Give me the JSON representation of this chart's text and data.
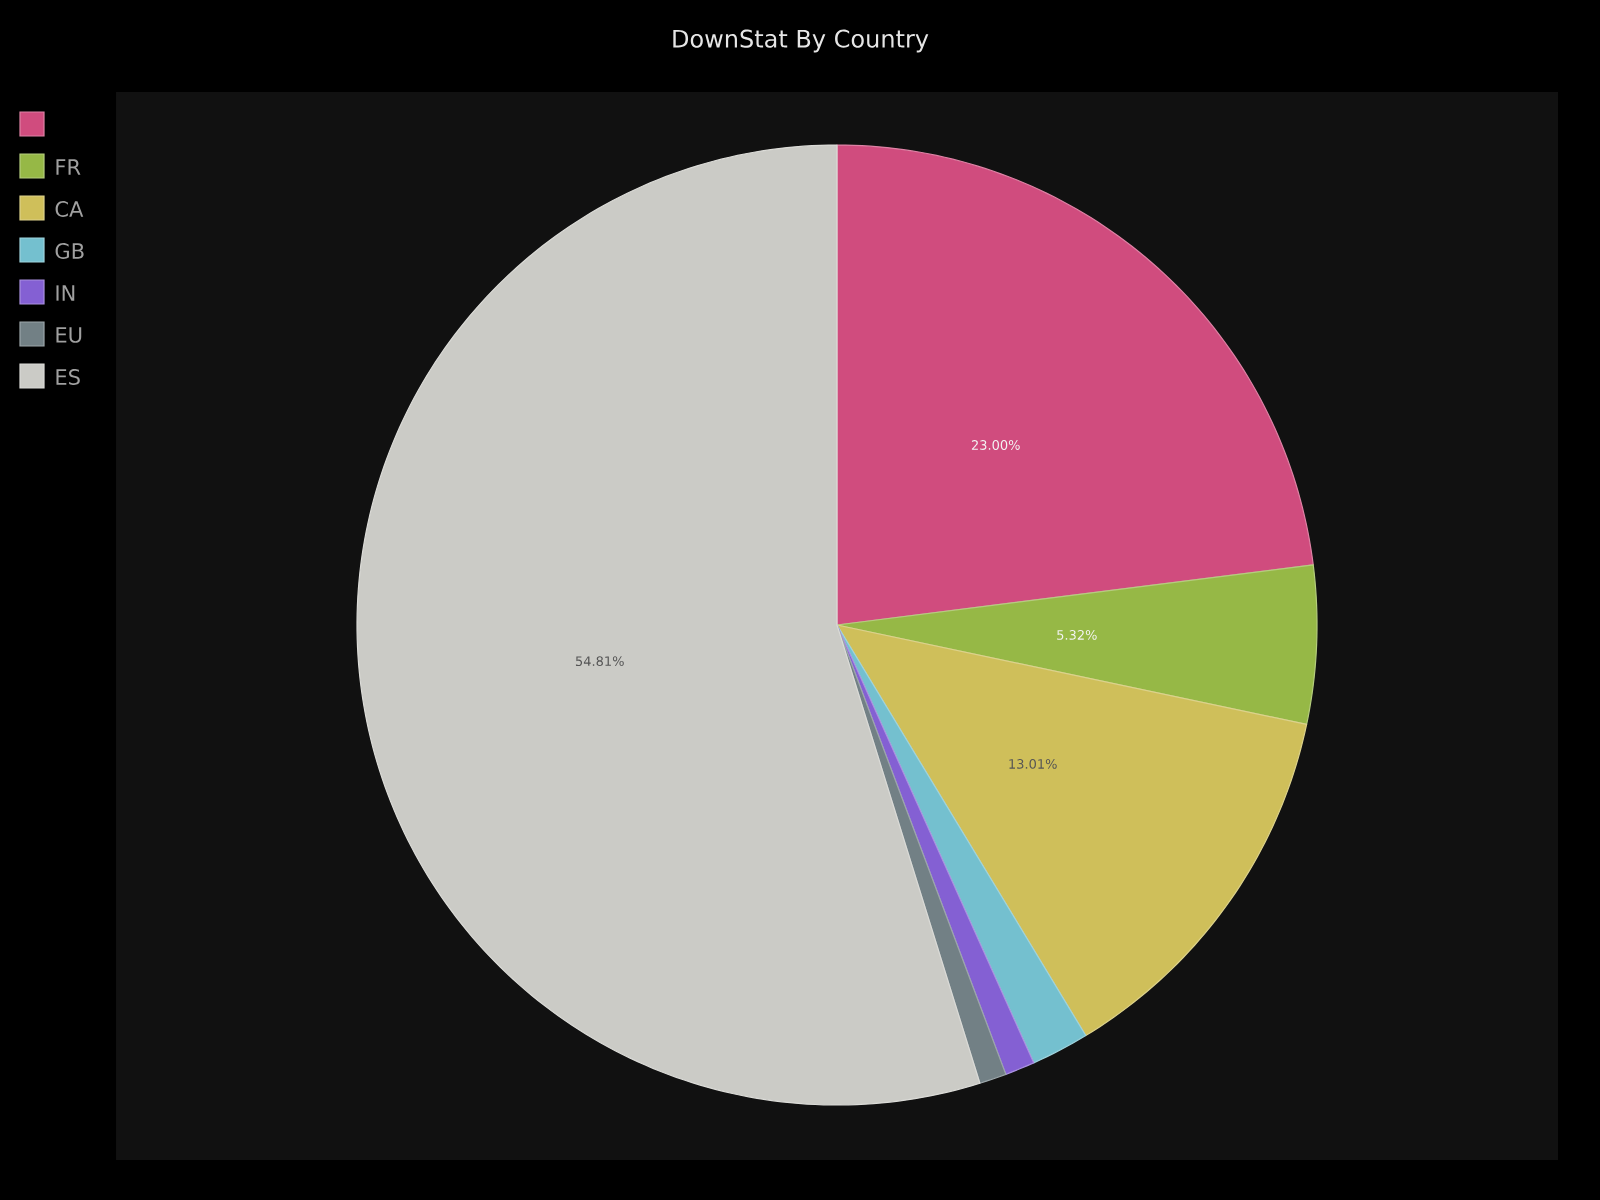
{
  "chart_data": {
    "type": "pie",
    "title": "DownStat By Country",
    "categories": [
      null,
      "FR",
      "CA",
      "GB",
      "IN",
      "EU",
      "ES"
    ],
    "values": [
      23.0,
      5.32,
      13.01,
      1.95,
      1.0,
      0.91,
      54.81
    ],
    "colors": [
      "#d04c7e",
      "#96b846",
      "#cfbf5a",
      "#74c0cf",
      "#8460d3",
      "#728085",
      "#cbcbc6"
    ],
    "value_labels": [
      "23.00%",
      "5.32%",
      "13.01%",
      null,
      null,
      null,
      "54.81%"
    ],
    "legend": "top left"
  }
}
